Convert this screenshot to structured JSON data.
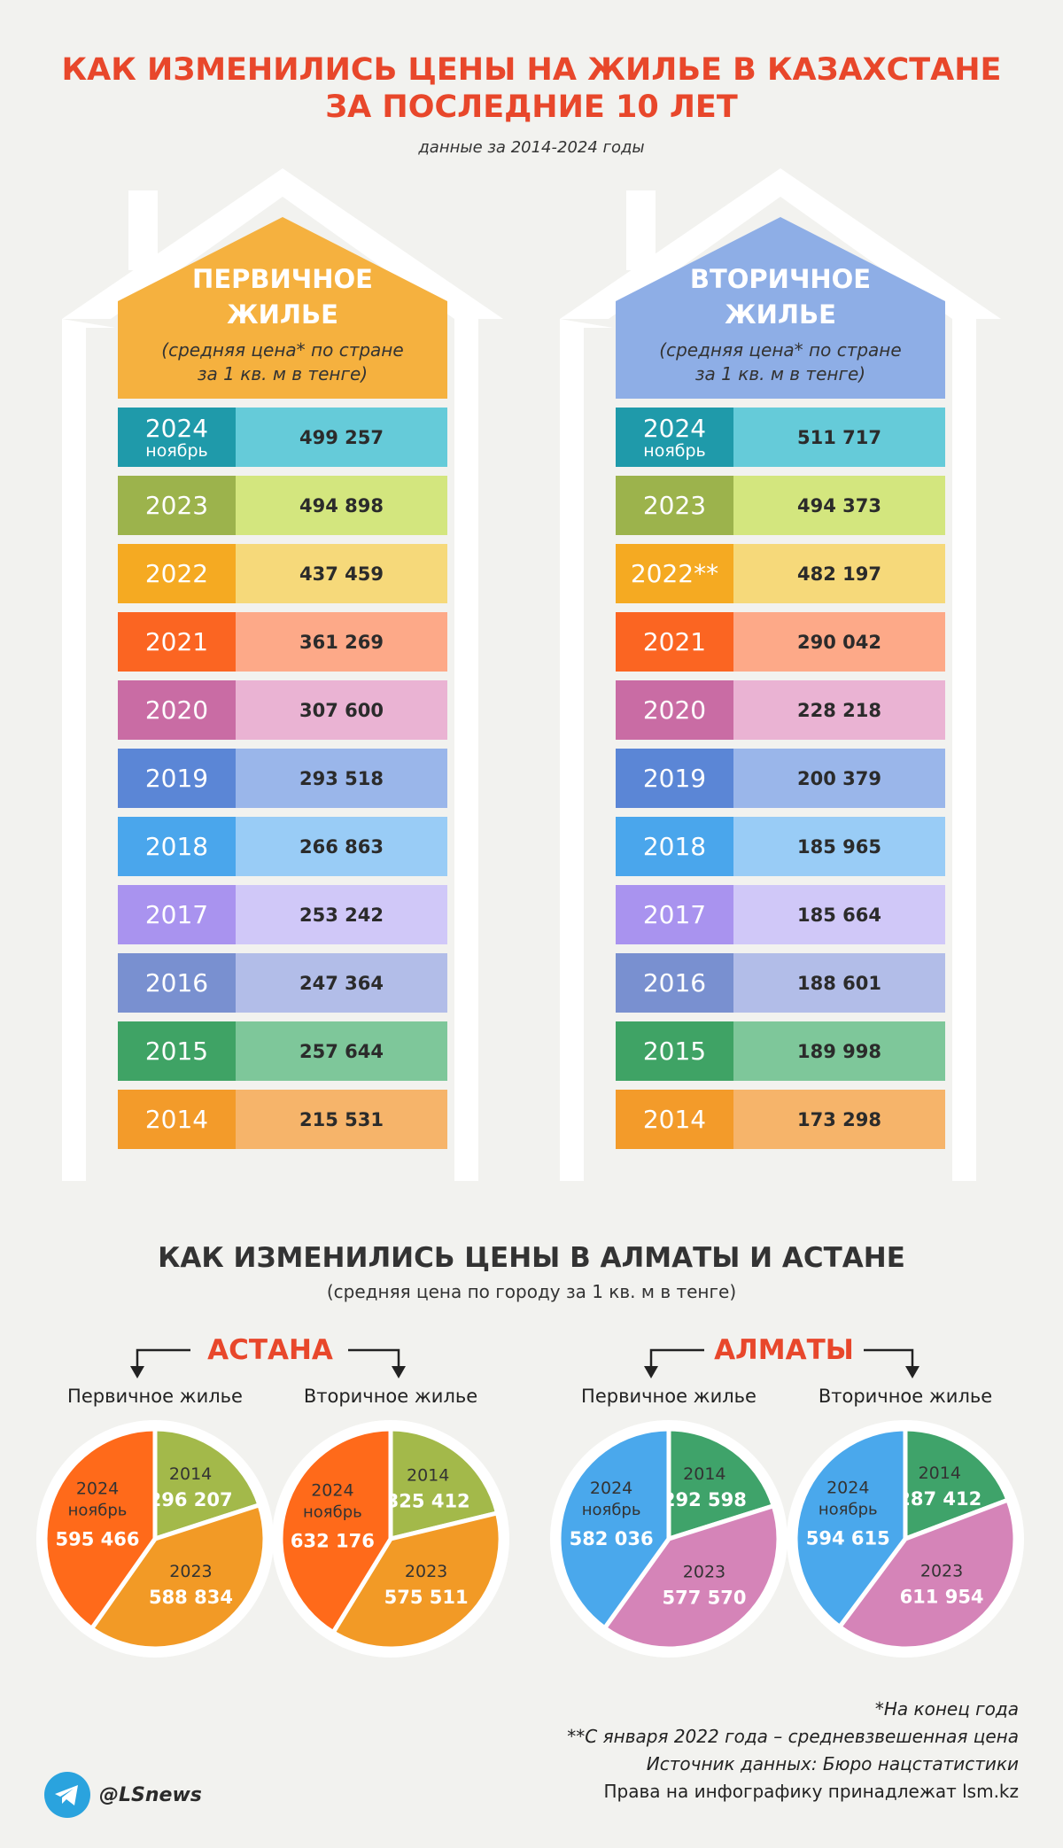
{
  "header": {
    "title_line1": "КАК ИЗМЕНИЛИСЬ ЦЕНЫ НА ЖИЛЬЕ В КАЗАХСТАНЕ",
    "title_line2": "ЗА ПОСЛЕДНИЕ 10 ЛЕТ",
    "subtitle": "данные за 2014-2024 годы"
  },
  "houses": [
    {
      "title_line1": "ПЕРВИЧНОЕ",
      "title_line2": "ЖИЛЬЕ",
      "sub_line1": "(средняя цена* по стране",
      "sub_line2": "за 1 кв. м в тенге)",
      "color": "#f5b13f",
      "rows": [
        {
          "year": "2024",
          "month": "ноябрь",
          "value": "499 257"
        },
        {
          "year": "2023",
          "value": "494 898"
        },
        {
          "year": "2022",
          "value": "437 459"
        },
        {
          "year": "2021",
          "value": "361 269"
        },
        {
          "year": "2020",
          "value": "307 600"
        },
        {
          "year": "2019",
          "value": "293 518"
        },
        {
          "year": "2018",
          "value": "266 863"
        },
        {
          "year": "2017",
          "value": "253 242"
        },
        {
          "year": "2016",
          "value": "247 364"
        },
        {
          "year": "2015",
          "value": "257 644"
        },
        {
          "year": "2014",
          "value": "215 531"
        }
      ]
    },
    {
      "title_line1": "ВТОРИЧНОЕ",
      "title_line2": "ЖИЛЬЕ",
      "sub_line1": "(средняя цена* по стране",
      "sub_line2": "за 1 кв. м в тенге)",
      "color": "#8eaee6",
      "rows": [
        {
          "year": "2024",
          "month": "ноябрь",
          "value": "511 717"
        },
        {
          "year": "2023",
          "value": "494 373"
        },
        {
          "year": "2022**",
          "value": "482 197"
        },
        {
          "year": "2021",
          "value": "290 042"
        },
        {
          "year": "2020",
          "value": "228 218"
        },
        {
          "year": "2019",
          "value": "200 379"
        },
        {
          "year": "2018",
          "value": "185 965"
        },
        {
          "year": "2017",
          "value": "185 664"
        },
        {
          "year": "2016",
          "value": "188 601"
        },
        {
          "year": "2015",
          "value": "189 998"
        },
        {
          "year": "2014",
          "value": "173 298"
        }
      ]
    }
  ],
  "row_colors": [
    [
      "#1f9aaa",
      "#65cbd9"
    ],
    [
      "#9cb34c",
      "#d3e67e"
    ],
    [
      "#f5aa22",
      "#f6d97a"
    ],
    [
      "#fb6522",
      "#fda988"
    ],
    [
      "#c96ca4",
      "#eab3d3"
    ],
    [
      "#5b86d6",
      "#9ab6ea"
    ],
    [
      "#4aa6ec",
      "#99ccf6"
    ],
    [
      "#a993ef",
      "#d0c8f8"
    ],
    [
      "#7990d0",
      "#b2bde8"
    ],
    [
      "#3fa365",
      "#7ec79a"
    ],
    [
      "#f39b2a",
      "#f6b46a"
    ]
  ],
  "section2": {
    "title": "КАК ИЗМЕНИЛИСЬ ЦЕНЫ В АЛМАТЫ И АСТАНЕ",
    "subtitle": "(средняя цена по городу за 1 кв. м в тенге)",
    "city1": "АСТАНА",
    "city2": "АЛМАТЫ"
  },
  "chart_data": [
    {
      "type": "pie",
      "title": "Первичное жилье",
      "city": "АСТАНА",
      "slices": [
        {
          "label": "2014",
          "value": 296207,
          "text": "296 207",
          "color": "#a3b94a"
        },
        {
          "label": "2023",
          "value": 588834,
          "text": "588 834",
          "color": "#f29a26"
        },
        {
          "label": "2024",
          "sublabel": "ноябрь",
          "value": 595466,
          "text": "595 466",
          "color": "#ff6a1a"
        }
      ]
    },
    {
      "type": "pie",
      "title": "Вторичное жилье",
      "city": "АСТАНА",
      "slices": [
        {
          "label": "2014",
          "value": 325412,
          "text": "325 412",
          "color": "#a3b94a"
        },
        {
          "label": "2023",
          "value": 575511,
          "text": "575 511",
          "color": "#f29a26"
        },
        {
          "label": "2024",
          "sublabel": "ноябрь",
          "value": 632176,
          "text": "632 176",
          "color": "#ff6a1a"
        }
      ]
    },
    {
      "type": "pie",
      "title": "Первичное жилье",
      "city": "АЛМАТЫ",
      "slices": [
        {
          "label": "2014",
          "value": 292598,
          "text": "292 598",
          "color": "#3fa36a"
        },
        {
          "label": "2023",
          "value": 577570,
          "text": "577 570",
          "color": "#d584b8"
        },
        {
          "label": "2024",
          "sublabel": "ноябрь",
          "value": 582036,
          "text": "582 036",
          "color": "#4aa8ec"
        }
      ]
    },
    {
      "type": "pie",
      "title": "Вторичное жилье",
      "city": "АЛМАТЫ",
      "slices": [
        {
          "label": "2014",
          "value": 287412,
          "text": "287 412",
          "color": "#3fa36a"
        },
        {
          "label": "2023",
          "value": 611954,
          "text": "611 954",
          "color": "#d584b8"
        },
        {
          "label": "2024",
          "sublabel": "ноябрь",
          "value": 594615,
          "text": "594 615",
          "color": "#4aa8ec"
        }
      ]
    }
  ],
  "footer": {
    "notes": [
      "*На конец года",
      "**С января 2022 года – средневзвешенная цена",
      "Источник данных: Бюро нацстатистики",
      "Права на инфографику принадлежат lsm.kz"
    ],
    "telegram": "@LSnews",
    "telegram_icon": "telegram-icon"
  }
}
